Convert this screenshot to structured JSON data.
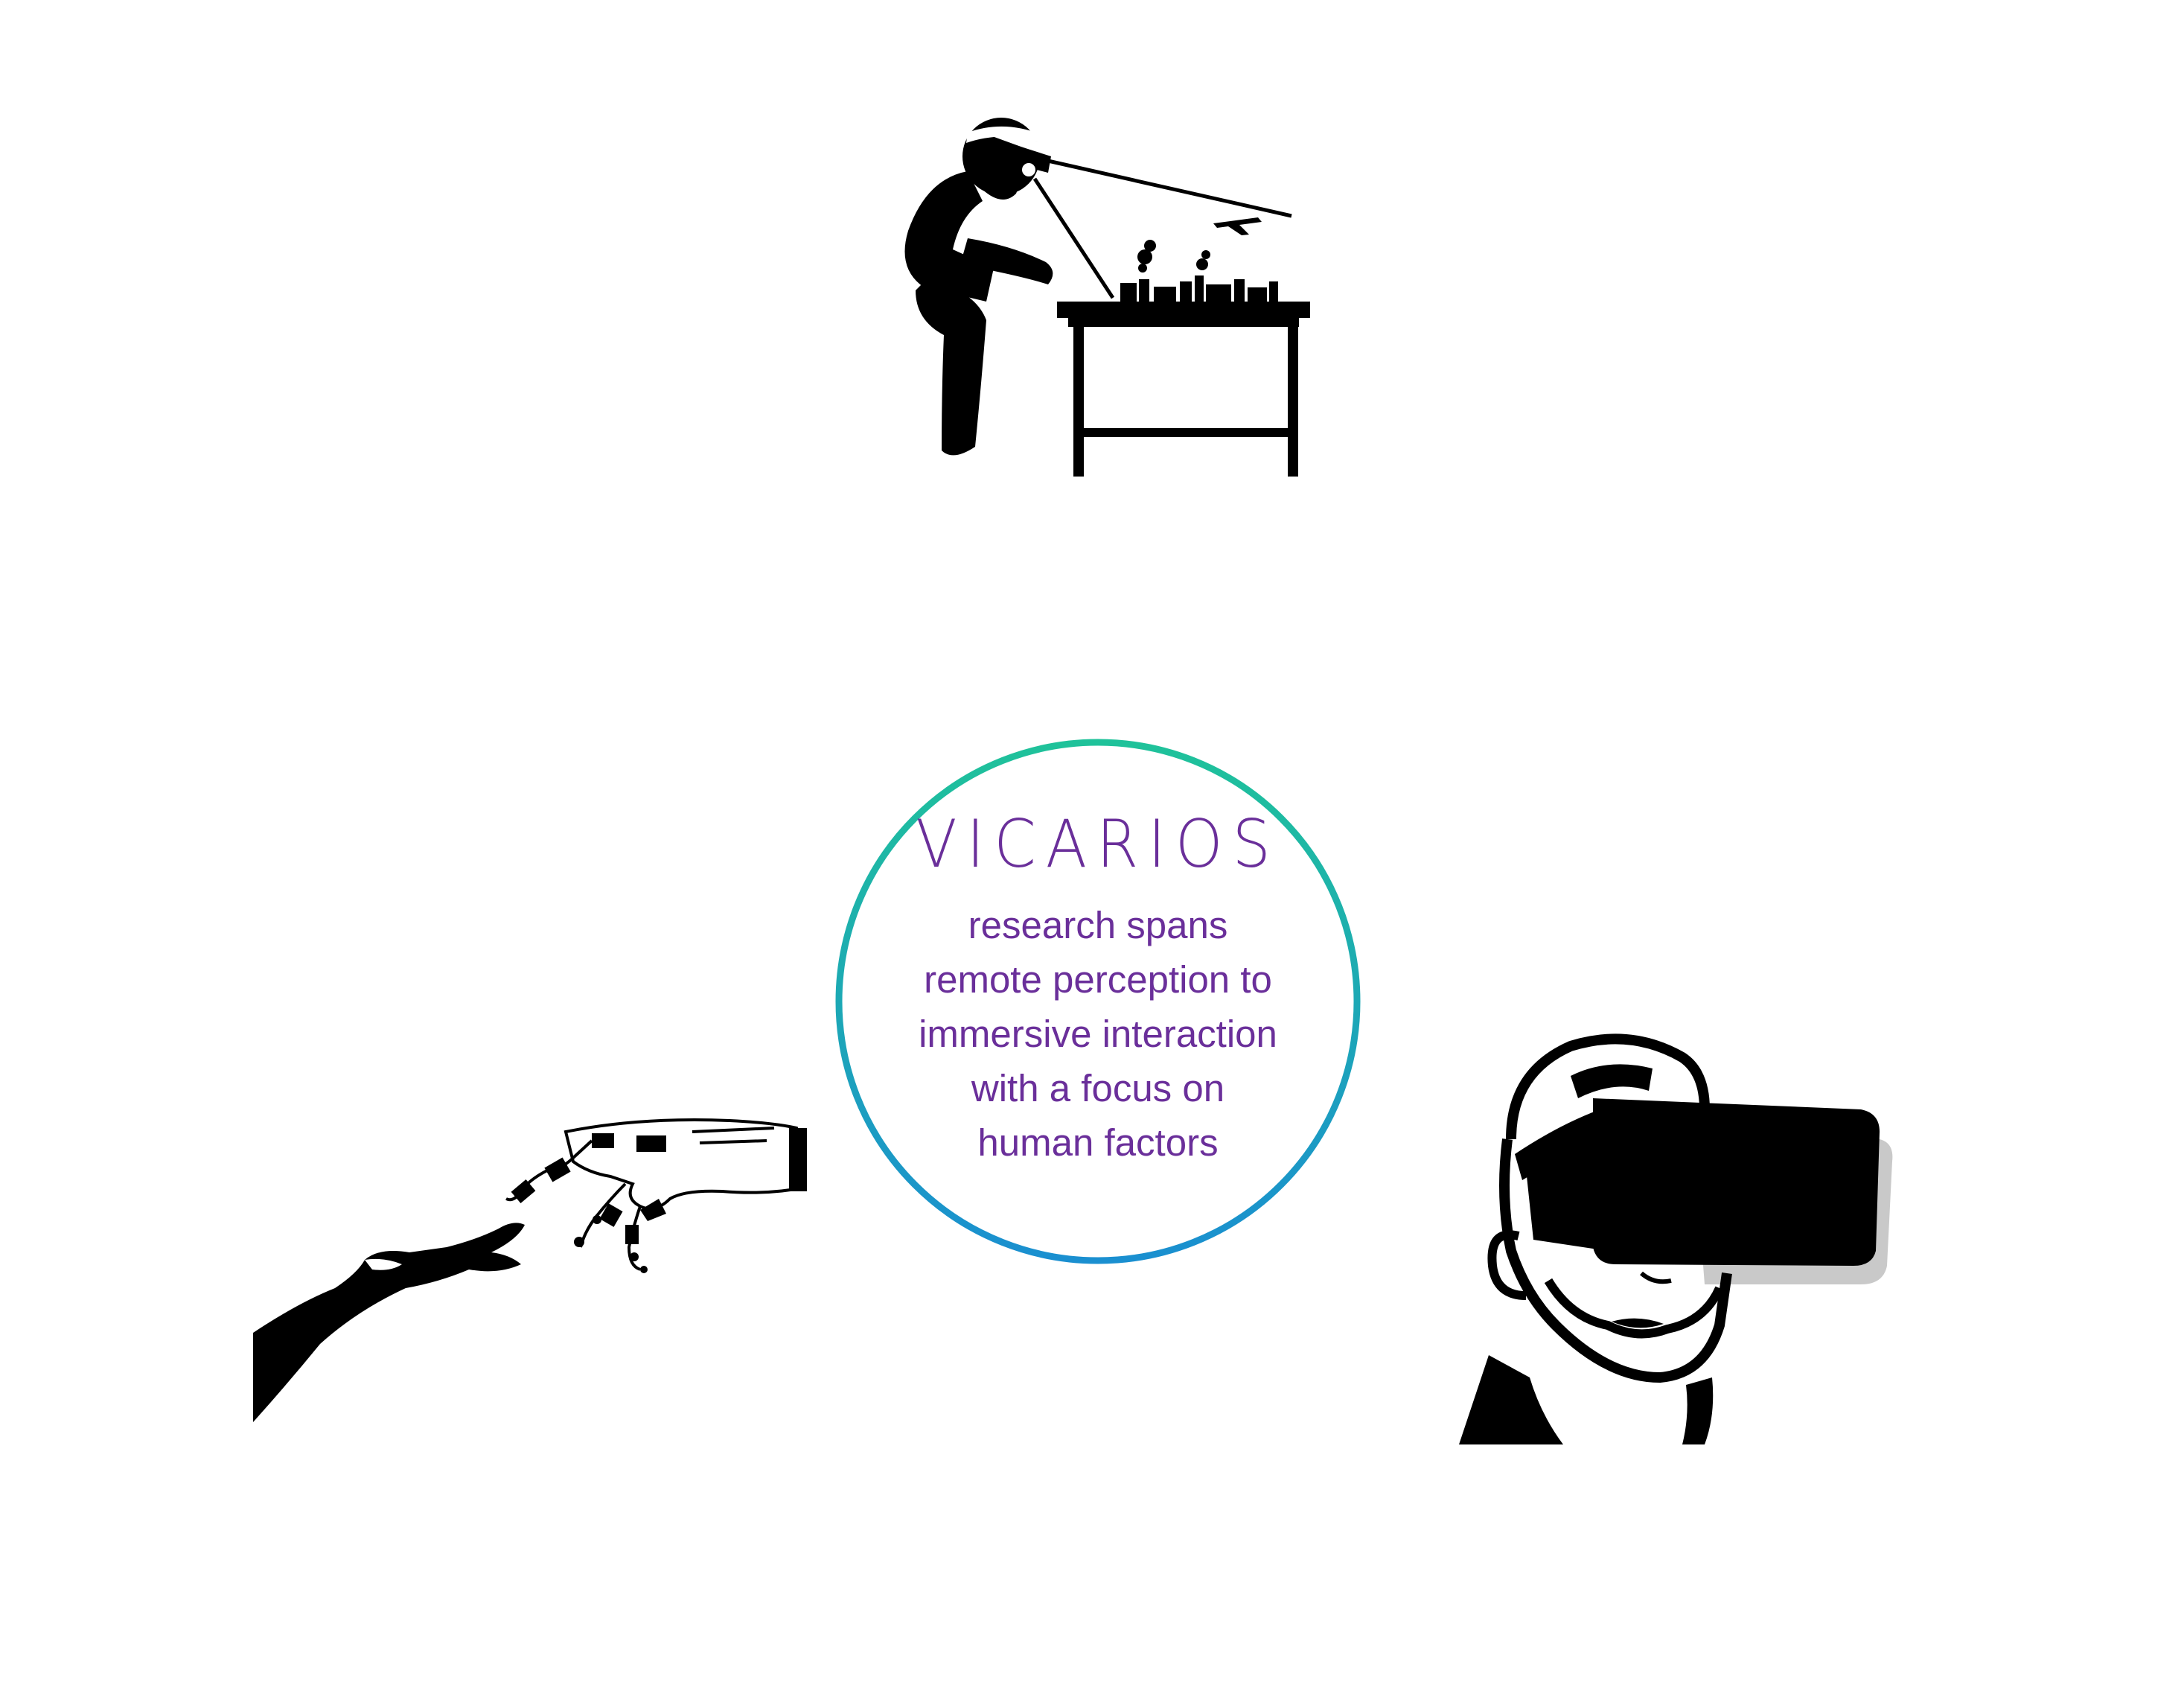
{
  "center": {
    "brand": "VICARIOS",
    "lines": [
      "research spans",
      "remote perception to",
      "immersive interaction",
      "with a focus on",
      "human factors"
    ]
  },
  "colors": {
    "text": "#6a2f9a",
    "ring_top": "#1fc29a",
    "ring_bottom": "#1a8fd0",
    "ink": "#000000"
  },
  "icons": {
    "worker": "person-with-headset-viewing-city-model-icon",
    "hands": "human-hand-reaching-robot-hand-icon",
    "vr": "man-wearing-vr-headset-icon"
  }
}
